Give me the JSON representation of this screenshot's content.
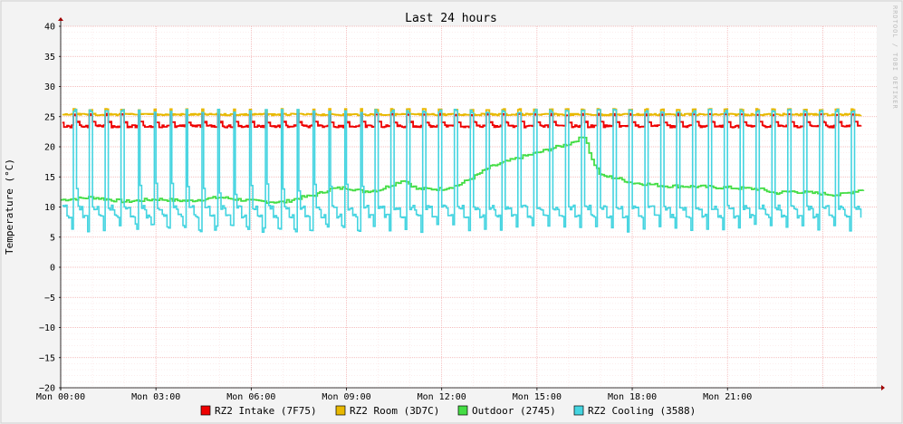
{
  "chart_data": {
    "type": "line",
    "title": "Last 24 hours",
    "ylabel": "Temperature (°C)",
    "xlabel": "",
    "watermark": "RRDTOOL / TOBI OETIKER",
    "ylim": [
      -20,
      40
    ],
    "y_ticks": [
      "40",
      "35",
      "30",
      "25",
      "20",
      "15",
      "10",
      "5",
      "0",
      "−5",
      "−10",
      "−15",
      "−20"
    ],
    "x_range_hours": [
      0,
      25.7
    ],
    "x_ticks": [
      {
        "hour": 0,
        "label": "Mon 00:00"
      },
      {
        "hour": 3,
        "label": "Mon 03:00"
      },
      {
        "hour": 6,
        "label": "Mon 06:00"
      },
      {
        "hour": 9,
        "label": "Mon 09:00"
      },
      {
        "hour": 12,
        "label": "Mon 12:00"
      },
      {
        "hour": 15,
        "label": "Mon 15:00"
      },
      {
        "hour": 18,
        "label": "Mon 18:00"
      },
      {
        "hour": 21,
        "label": "Mon 21:00"
      }
    ],
    "grid": true,
    "legend_position": "bottom",
    "background_color": "#f3f3f3",
    "grid_color": "#f0a0a0",
    "series": [
      {
        "name": "RZ2 Intake (7F75)",
        "color": "#ee0000",
        "cycle_hours": 0.5,
        "low": 23.3,
        "high": 25.5
      },
      {
        "name": "RZ2 Room (3D7C)",
        "color": "#e8b800",
        "cycle_hours": 0.5,
        "low": 25.3,
        "high": 26.3
      },
      {
        "name": "Outdoor (2745)",
        "color": "#44dd44",
        "points": [
          [
            0.0,
            11.2
          ],
          [
            1.0,
            11.6
          ],
          [
            2.0,
            10.9
          ],
          [
            3.0,
            11.3
          ],
          [
            4.0,
            11.0
          ],
          [
            5.0,
            11.6
          ],
          [
            6.0,
            11.0
          ],
          [
            7.0,
            10.8
          ],
          [
            7.5,
            11.5
          ],
          [
            8.0,
            12.0
          ],
          [
            8.5,
            13.0
          ],
          [
            9.0,
            13.2
          ],
          [
            9.5,
            12.6
          ],
          [
            10.0,
            12.8
          ],
          [
            10.8,
            14.5
          ],
          [
            11.2,
            13.0
          ],
          [
            12.0,
            13.0
          ],
          [
            12.5,
            13.6
          ],
          [
            13.0,
            15.0
          ],
          [
            13.5,
            16.6
          ],
          [
            14.0,
            17.5
          ],
          [
            14.5,
            18.3
          ],
          [
            15.0,
            19.0
          ],
          [
            15.5,
            19.8
          ],
          [
            16.0,
            20.5
          ],
          [
            16.5,
            21.8
          ],
          [
            16.7,
            18.0
          ],
          [
            17.0,
            15.2
          ],
          [
            17.5,
            14.8
          ],
          [
            18.0,
            14.0
          ],
          [
            18.5,
            13.8
          ],
          [
            19.0,
            13.5
          ],
          [
            20.0,
            13.4
          ],
          [
            21.0,
            13.2
          ],
          [
            22.0,
            13.0
          ],
          [
            22.5,
            12.3
          ],
          [
            23.0,
            12.6
          ],
          [
            24.0,
            12.2
          ],
          [
            24.5,
            12.0
          ],
          [
            25.3,
            13.0
          ]
        ]
      },
      {
        "name": "RZ2 Cooling (3588)",
        "color": "#44d4e0",
        "cycle_hours": 0.5,
        "low": 7.2,
        "high": 26.2
      }
    ]
  },
  "legend": [
    {
      "label": "RZ2 Intake (7F75)",
      "color": "#ee0000"
    },
    {
      "label": "RZ2 Room (3D7C)",
      "color": "#e8b800"
    },
    {
      "label": "Outdoor (2745)",
      "color": "#44dd44"
    },
    {
      "label": "RZ2 Cooling (3588)",
      "color": "#44d4e0"
    }
  ]
}
